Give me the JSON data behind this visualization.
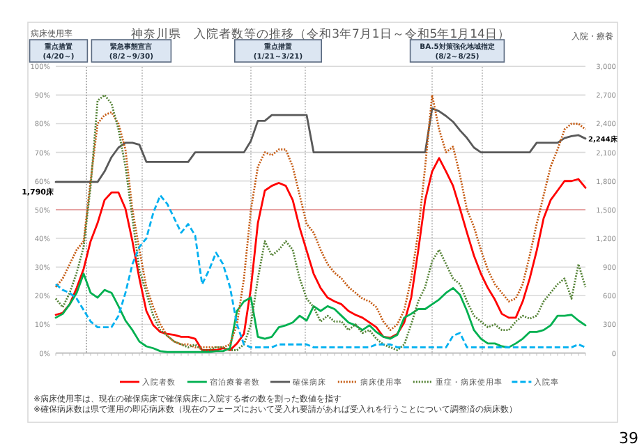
{
  "chart_data": {
    "type": "line",
    "title": "神奈川県　入院者数等の推移（令和3年7月1日～令和5年1月14日）",
    "ylabel": "病床使用率",
    "y2label": "入院・療養",
    "categories": [
      null,
      null,
      null,
      null,
      null,
      null,
      null,
      null,
      null,
      null,
      null,
      null,
      null,
      null,
      null,
      null,
      null,
      null,
      null,
      null,
      null,
      null,
      null,
      null,
      null,
      null,
      null,
      null,
      null,
      null,
      null,
      null,
      null,
      null,
      null,
      null,
      null,
      null,
      null,
      null,
      null,
      null,
      null,
      null,
      null,
      null,
      null,
      null,
      null,
      null,
      null,
      null,
      null,
      null,
      null,
      null,
      null,
      null,
      null,
      null,
      null,
      null,
      null,
      null,
      null,
      null,
      null,
      null,
      null,
      null,
      null,
      null,
      null,
      null,
      null,
      null,
      null
    ],
    "ylim": [
      0,
      100
    ],
    "yticks": [
      {
        "value": 0,
        "label": "0%"
      },
      {
        "value": 10,
        "label": "10%"
      },
      {
        "value": 20,
        "label": "20%"
      },
      {
        "value": 30,
        "label": "30%"
      },
      {
        "value": 40,
        "label": "40%"
      },
      {
        "value": 50,
        "label": "50%"
      },
      {
        "value": 60,
        "label": "60%"
      },
      {
        "value": 70,
        "label": "70%"
      },
      {
        "value": 80,
        "label": "80%"
      },
      {
        "value": 90,
        "label": "90%"
      },
      {
        "value": 100,
        "label": "100%"
      }
    ],
    "y2lim": [
      0,
      3000
    ],
    "y2ticks": [
      0,
      300,
      600,
      900,
      {
        "value": 1200,
        "label": "1,200"
      },
      {
        "value": 1500,
        "label": "1,500"
      },
      {
        "value": 1800,
        "label": "1,800"
      },
      {
        "value": 2100,
        "label": "2,100"
      },
      {
        "value": 2400,
        "label": "2,400"
      },
      {
        "value": 2700,
        "label": "2,700"
      },
      {
        "value": 3000,
        "label": "3,000"
      }
    ],
    "grid": "y",
    "legend": "bottom",
    "series": [
      {
        "name": "入院者数",
        "color": "#ff0000",
        "axis": "y2",
        "line_style": "solid",
        "values": [
          400,
          420,
          510,
          680,
          880,
          1170,
          1360,
          1600,
          1680,
          1680,
          1510,
          1170,
          780,
          440,
          290,
          220,
          200,
          190,
          170,
          170,
          150,
          30,
          30,
          30,
          50,
          30,
          100,
          200,
          680,
          1360,
          1700,
          1750,
          1780,
          1750,
          1600,
          1310,
          1070,
          830,
          680,
          580,
          540,
          510,
          440,
          400,
          370,
          320,
          270,
          170,
          160,
          200,
          320,
          580,
          1070,
          1600,
          1900,
          2040,
          1900,
          1750,
          1510,
          1260,
          1020,
          830,
          680,
          560,
          410,
          370,
          370,
          540,
          780,
          1070,
          1410,
          1600,
          1700,
          1800,
          1800,
          1820,
          1730
        ]
      },
      {
        "name": "宿泊療養者数",
        "color": "#00b050",
        "axis": "y2",
        "line_style": "solid",
        "values": [
          370,
          410,
          510,
          630,
          830,
          630,
          580,
          660,
          630,
          490,
          340,
          240,
          120,
          70,
          50,
          20,
          10,
          10,
          10,
          10,
          10,
          10,
          10,
          20,
          20,
          50,
          440,
          540,
          580,
          170,
          150,
          170,
          270,
          290,
          320,
          390,
          340,
          490,
          440,
          490,
          460,
          390,
          320,
          290,
          240,
          290,
          220,
          170,
          150,
          190,
          370,
          410,
          460,
          460,
          510,
          560,
          630,
          680,
          610,
          440,
          240,
          150,
          100,
          100,
          70,
          60,
          100,
          150,
          220,
          220,
          240,
          290,
          390,
          390,
          400,
          340,
          290
        ]
      },
      {
        "name": "確保病床",
        "color": "#595959",
        "axis": "y2",
        "line_style": "solid",
        "values": [
          1790,
          1790,
          1790,
          1790,
          1790,
          1790,
          1790,
          1900,
          2050,
          2150,
          2200,
          2200,
          2180,
          2000,
          2000,
          2000,
          2000,
          2000,
          2000,
          2000,
          2100,
          2100,
          2100,
          2100,
          2100,
          2100,
          2100,
          2100,
          2220,
          2430,
          2430,
          2490,
          2490,
          2490,
          2490,
          2490,
          2490,
          2100,
          2100,
          2100,
          2100,
          2100,
          2100,
          2100,
          2100,
          2100,
          2100,
          2100,
          2100,
          2100,
          2100,
          2100,
          2100,
          2100,
          2560,
          2530,
          2480,
          2420,
          2330,
          2250,
          2150,
          2100,
          2100,
          2100,
          2100,
          2100,
          2100,
          2100,
          2100,
          2200,
          2200,
          2200,
          2200,
          2250,
          2270,
          2280,
          2244
        ],
        "value_labels": [
          "1,790床",
          null,
          null,
          null,
          null,
          null,
          null,
          null,
          null,
          null,
          null,
          null,
          null,
          null,
          null,
          null,
          null,
          null,
          null,
          null,
          null,
          null,
          null,
          null,
          null,
          null,
          null,
          null,
          null,
          null,
          null,
          null,
          null,
          null,
          null,
          null,
          null,
          null,
          null,
          null,
          null,
          null,
          null,
          null,
          null,
          null,
          null,
          null,
          null,
          null,
          null,
          null,
          null,
          null,
          null,
          null,
          null,
          null,
          null,
          null,
          null,
          null,
          null,
          null,
          null,
          null,
          null,
          null,
          null,
          null,
          null,
          null,
          null,
          null,
          null,
          null,
          "2,244床"
        ]
      },
      {
        "name": "病床使用率",
        "color": "#c55a11",
        "line_style": "dotted",
        "values": [
          23,
          26,
          31,
          36,
          39,
          60,
          80,
          83,
          84,
          80,
          71,
          50,
          36,
          23,
          16,
          10,
          6,
          4,
          3,
          3,
          2,
          2,
          2,
          2,
          2,
          3,
          10,
          26,
          50,
          65,
          70,
          69,
          71,
          71,
          65,
          55,
          45,
          42,
          36,
          31,
          28,
          26,
          23,
          21,
          19,
          18,
          16,
          11,
          8,
          10,
          15,
          26,
          42,
          65,
          90,
          78,
          70,
          72,
          62,
          50,
          44,
          36,
          29,
          24,
          21,
          18,
          19,
          24,
          34,
          45,
          55,
          65,
          71,
          78,
          80,
          80,
          78
        ]
      },
      {
        "name": "重症・病床使用率",
        "color": "#548235",
        "line_style": "dotted",
        "values": [
          19,
          16,
          21,
          28,
          37,
          58,
          88,
          90,
          87,
          78,
          65,
          47,
          29,
          21,
          13,
          8,
          6,
          4,
          3,
          2,
          3,
          1,
          1,
          2,
          2,
          1,
          1,
          3,
          10,
          26,
          39,
          34,
          36,
          39,
          36,
          26,
          19,
          16,
          11,
          13,
          11,
          11,
          8,
          10,
          7,
          8,
          5,
          3,
          2,
          1,
          3,
          10,
          18,
          23,
          32,
          36,
          31,
          26,
          24,
          18,
          13,
          11,
          9,
          10,
          8,
          8,
          11,
          13,
          12,
          13,
          18,
          21,
          24,
          26,
          19,
          31,
          23
        ]
      },
      {
        "name": "入院率",
        "color": "#00b0f0",
        "line_style": "dashed",
        "values": [
          24,
          22,
          21,
          19,
          15,
          11,
          9,
          9,
          9,
          13,
          21,
          31,
          37,
          40,
          49,
          55,
          52,
          47,
          42,
          45,
          41,
          24,
          29,
          35,
          31,
          23,
          10,
          3,
          2,
          2,
          2,
          2,
          3,
          3,
          3,
          3,
          3,
          2,
          2,
          2,
          2,
          2,
          2,
          2,
          2,
          2,
          3,
          3,
          3,
          2,
          2,
          2,
          2,
          2,
          2,
          2,
          2,
          6,
          7,
          2,
          2,
          2,
          2,
          2,
          2,
          2,
          2,
          2,
          2,
          2,
          2,
          2,
          2,
          2,
          2,
          3,
          2
        ]
      }
    ],
    "ref_lines": [
      {
        "axis": "y",
        "value": 50,
        "color": "#e6a0a0"
      }
    ],
    "annotations": [
      "重点措置\n(4/20～)",
      "緊急事態宣言\n(8/2～9/30)",
      "重点措置\n(1/21～3/21)",
      "BA.5対策強化地域指定\n(8/2～8/25)",
      "※病床使用率は、現在の確保病床で確保病床に入院する者の数を割った数値を指す",
      "※確保病床数は県で運用の即応病床数（現在のフェーズにおいて受入れ要請があれば受入れを行うことについて調整済の病床数）",
      "39"
    ]
  }
}
